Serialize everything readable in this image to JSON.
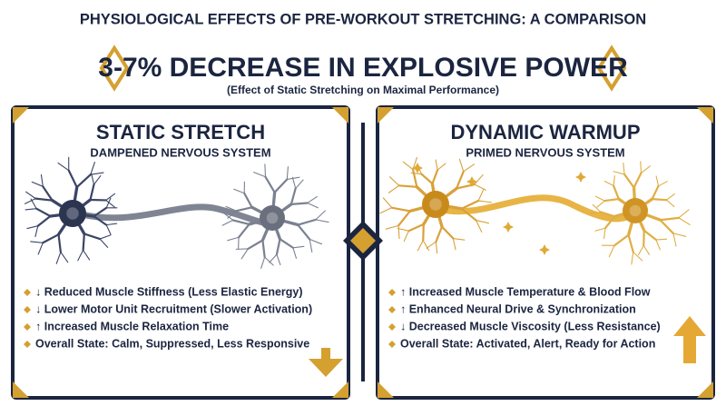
{
  "title": "PHYSIOLOGICAL EFFECTS OF PRE-WORKOUT STRETCHING: A COMPARISON",
  "banner": {
    "headline": "3-7% DECREASE IN EXPLOSIVE POWER",
    "caption": "(Effect of Static Stretching on Maximal Performance)"
  },
  "panels": [
    {
      "title": "STATIC STRETCH",
      "subtitle": "DAMPENED NERVOUS SYSTEM",
      "bullets": [
        "↓ Reduced Muscle Stiffness (Less Elastic Energy)",
        "↓ Lower Motor Unit Recruitment (Slower Activation)",
        "↑ Increased Muscle Relaxation Time",
        "Overall State: Calm, Suppressed, Less Responsive"
      ]
    },
    {
      "title": "DYNAMIC WARMUP",
      "subtitle": "PRIMED NERVOUS SYSTEM",
      "bullets": [
        "↑ Increased Muscle Temperature & Blood Flow",
        "↑ Enhanced Neural Drive & Synchronization",
        "↓ Decreased Muscle Viscosity (Less Resistance)",
        "Overall State: Activated, Alert, Ready for Action"
      ]
    }
  ]
}
